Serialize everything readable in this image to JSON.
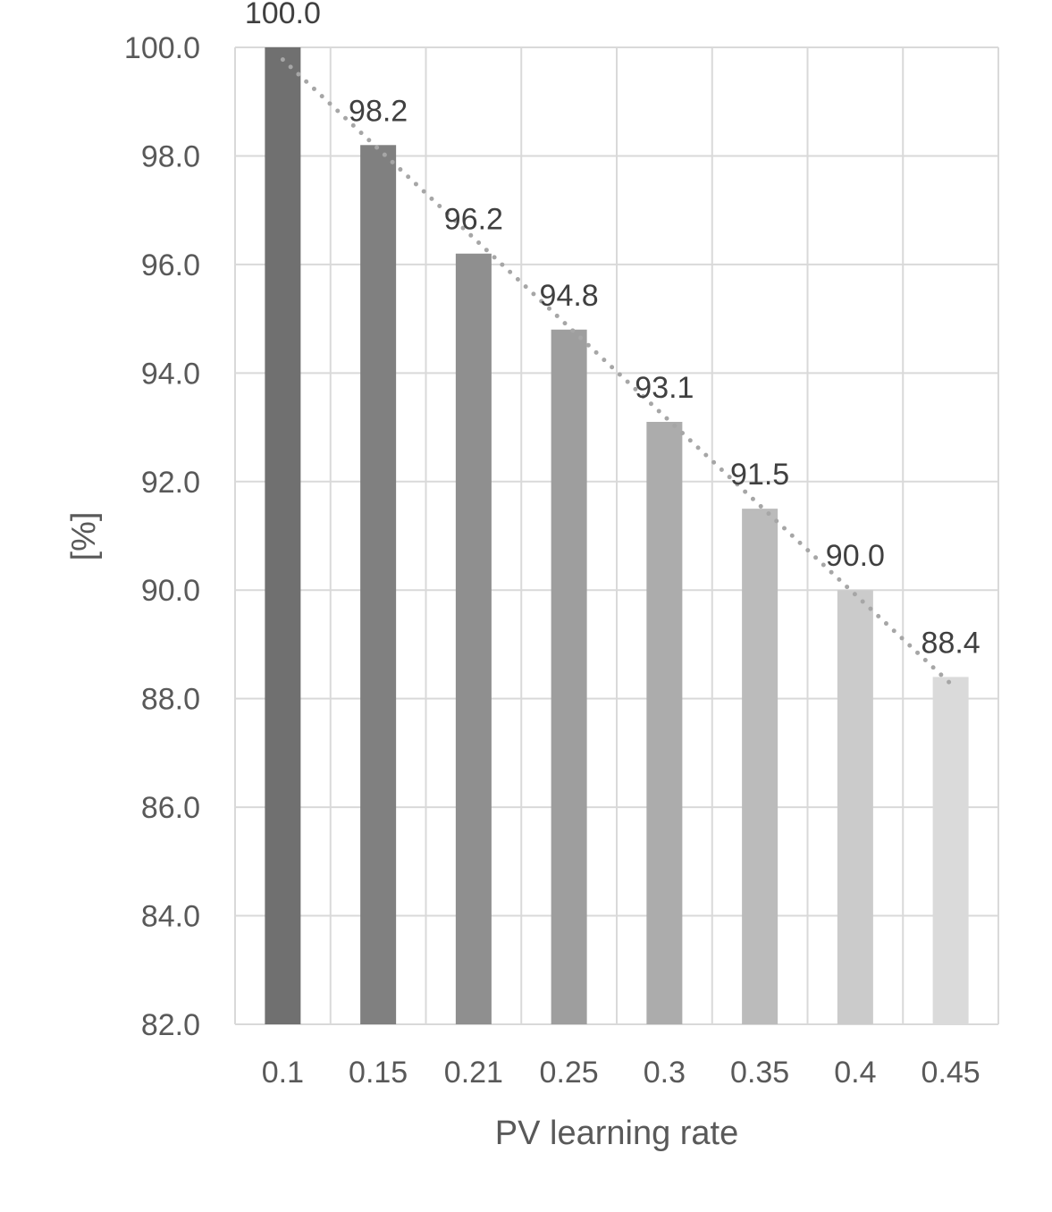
{
  "chart_data": {
    "type": "bar",
    "xlabel": "PV learning rate",
    "ylabel": "[%]",
    "categories": [
      "0.1",
      "0.15",
      "0.21",
      "0.25",
      "0.3",
      "0.35",
      "0.4",
      "0.45"
    ],
    "values": [
      100.0,
      98.2,
      96.2,
      94.8,
      93.1,
      91.5,
      90.0,
      88.4
    ],
    "data_labels": [
      "100.0",
      "98.2",
      "96.2",
      "94.8",
      "93.1",
      "91.5",
      "90.0",
      "88.4"
    ],
    "ylim": [
      82.0,
      100.0
    ],
    "yticks": [
      "82.0",
      "84.0",
      "86.0",
      "88.0",
      "90.0",
      "92.0",
      "94.0",
      "96.0",
      "98.0",
      "100.0"
    ],
    "grid": true,
    "trendline": "linear, dotted",
    "bar_colors": [
      "#707070",
      "#808080",
      "#8f8f8f",
      "#9e9e9e",
      "#acacac",
      "#bbbbbb",
      "#cbcbcb",
      "#dadada"
    ],
    "gridline_color": "#d9d9d9",
    "trendline_color": "#a6a6a6"
  }
}
